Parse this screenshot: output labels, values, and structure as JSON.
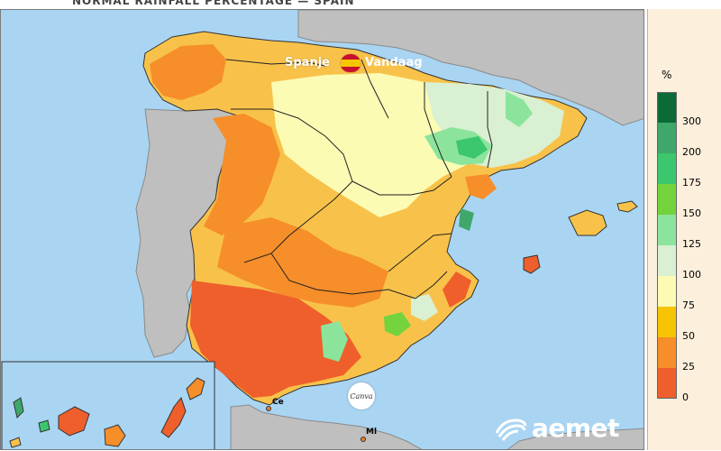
{
  "title": "NORMAL RAINFALL PERCENTAGE — SPAIN",
  "watermark": {
    "left": "Spanje",
    "right": "Vandaag"
  },
  "legend": {
    "unit": "%",
    "ticks": [
      "300",
      "200",
      "175",
      "150",
      "125",
      "100",
      "75",
      "50",
      "25",
      "0"
    ],
    "colors": [
      "#0b6b36",
      "#3fa76a",
      "#3cc66d",
      "#72d33c",
      "#8ce49c",
      "#d9f0d2",
      "#fbfbb4",
      "#f6c400",
      "#f68e2a",
      "#ef5f2b"
    ]
  },
  "cities": {
    "ceuta": "Ce",
    "melilla": "Ml"
  },
  "badge": "Canva",
  "logo": "aemet"
}
